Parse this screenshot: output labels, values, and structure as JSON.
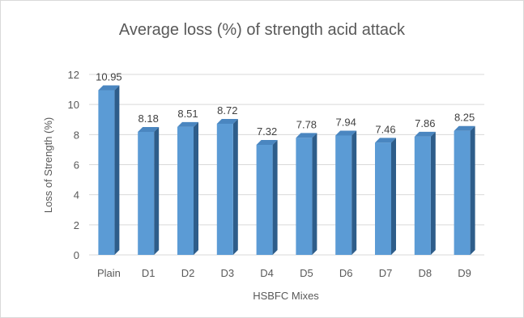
{
  "chart_data": {
    "type": "bar",
    "title": "Average loss (%) of strength acid attack",
    "xlabel": "HSBFC Mixes",
    "ylabel": "Loss of Strength (%)",
    "categories": [
      "Plain",
      "D1",
      "D2",
      "D3",
      "D4",
      "D5",
      "D6",
      "D7",
      "D8",
      "D9"
    ],
    "values": [
      10.95,
      8.18,
      8.51,
      8.72,
      7.32,
      7.78,
      7.94,
      7.46,
      7.86,
      8.25
    ],
    "data_labels": [
      "10.95",
      "8.18",
      "8.51",
      "8.72",
      "7.32",
      "7.78",
      "7.94",
      "7.46",
      "7.86",
      "8.25"
    ],
    "ylim": [
      0,
      12
    ],
    "yticks": [
      0,
      2,
      4,
      6,
      8,
      10,
      12
    ],
    "grid": true,
    "legend": "none",
    "colors": {
      "bar_front": "#5b9bd5",
      "bar_side": "#2e5d8a",
      "bar_top": "#4a86c0",
      "grid": "#d9d9d9",
      "text": "#595959"
    }
  }
}
